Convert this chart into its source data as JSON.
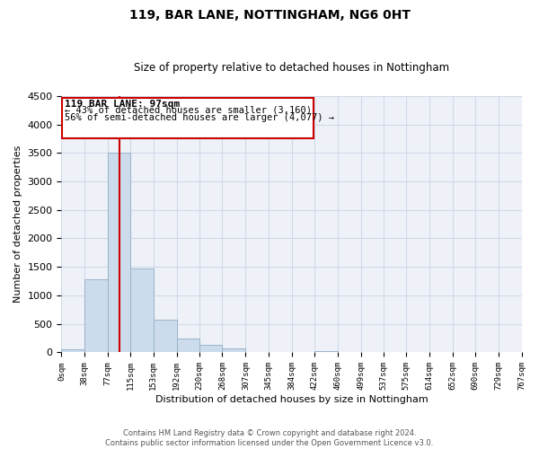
{
  "title": "119, BAR LANE, NOTTINGHAM, NG6 0HT",
  "subtitle": "Size of property relative to detached houses in Nottingham",
  "xlabel": "Distribution of detached houses by size in Nottingham",
  "ylabel": "Number of detached properties",
  "bar_values": [
    50,
    1280,
    3500,
    1480,
    580,
    250,
    130,
    70,
    0,
    0,
    0,
    20,
    0,
    0,
    0,
    0,
    0,
    0,
    0,
    0
  ],
  "bin_edges": [
    0,
    38,
    77,
    115,
    153,
    192,
    230,
    268,
    307,
    345,
    384,
    422,
    460,
    499,
    537,
    575,
    614,
    652,
    690,
    729,
    767
  ],
  "tick_labels": [
    "0sqm",
    "38sqm",
    "77sqm",
    "115sqm",
    "153sqm",
    "192sqm",
    "230sqm",
    "268sqm",
    "307sqm",
    "345sqm",
    "384sqm",
    "422sqm",
    "460sqm",
    "499sqm",
    "537sqm",
    "575sqm",
    "614sqm",
    "652sqm",
    "690sqm",
    "729sqm",
    "767sqm"
  ],
  "bar_color": "#ccdcec",
  "bar_edge_color": "#9ab4cc",
  "property_line_x": 97,
  "property_line_color": "#cc0000",
  "ann_line1": "119 BAR LANE: 97sqm",
  "ann_line2": "← 43% of detached houses are smaller (3,160)",
  "ann_line3": "56% of semi-detached houses are larger (4,077) →",
  "ylim": [
    0,
    4500
  ],
  "yticks": [
    0,
    500,
    1000,
    1500,
    2000,
    2500,
    3000,
    3500,
    4000,
    4500
  ],
  "grid_color": "#d0d8e8",
  "background_color": "#ffffff",
  "plot_bg_color": "#eef2f8",
  "footer_line1": "Contains HM Land Registry data © Crown copyright and database right 2024.",
  "footer_line2": "Contains public sector information licensed under the Open Government Licence v3.0."
}
